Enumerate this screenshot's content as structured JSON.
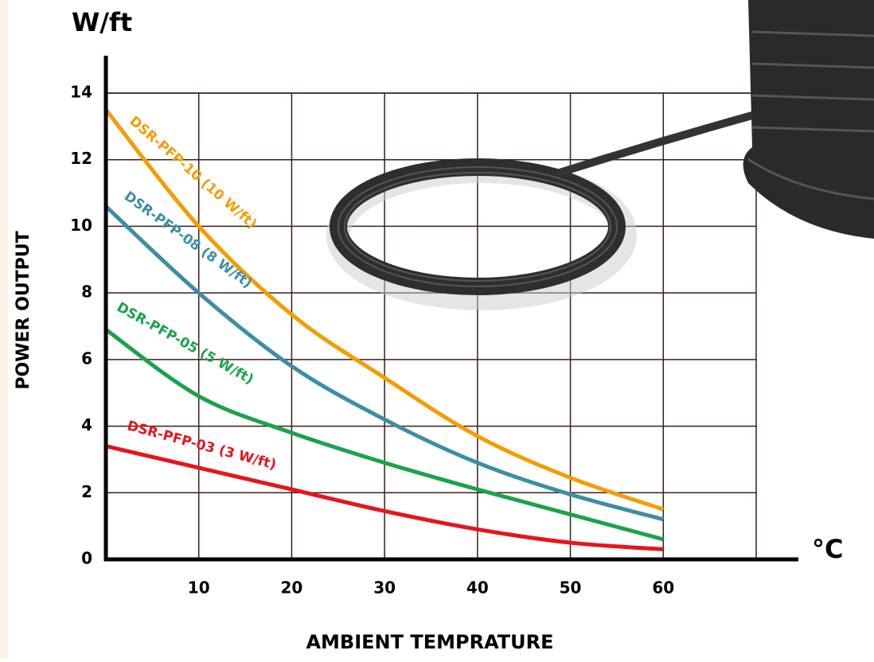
{
  "chart_data": {
    "type": "line",
    "y_unit": "W/ft",
    "y_label": "POWER OUTPUT",
    "x_label": "AMBIENT TEMPRATURE",
    "x_unit": "°C",
    "x": [
      0,
      10,
      20,
      30,
      40,
      50,
      60
    ],
    "series": [
      {
        "name": "DSR-PFP-10 (10 W/ft)",
        "color": "#f59c00",
        "values": [
          13.5,
          10.0,
          7.35,
          5.45,
          3.7,
          2.45,
          1.5
        ]
      },
      {
        "name": "DSR-PFP-08 (8 W/ft)",
        "color": "#3b8ea5",
        "values": [
          10.6,
          8.0,
          5.8,
          4.2,
          2.9,
          1.95,
          1.2
        ]
      },
      {
        "name": "DSR-PFP-05 (5 W/ft)",
        "color": "#1aa34a",
        "values": [
          6.9,
          4.9,
          3.8,
          2.9,
          2.1,
          1.35,
          0.6
        ]
      },
      {
        "name": "DSR-PFP-03 (3 W/ft)",
        "color": "#e8141c",
        "values": [
          3.4,
          2.75,
          2.1,
          1.45,
          0.9,
          0.5,
          0.3
        ]
      }
    ],
    "xlim": [
      0,
      70
    ],
    "xticks": [
      10,
      20,
      30,
      40,
      50,
      60
    ],
    "ylim": [
      0,
      14
    ],
    "yticks": [
      0,
      2,
      4,
      6,
      8,
      10,
      12,
      14
    ],
    "grid": true
  }
}
